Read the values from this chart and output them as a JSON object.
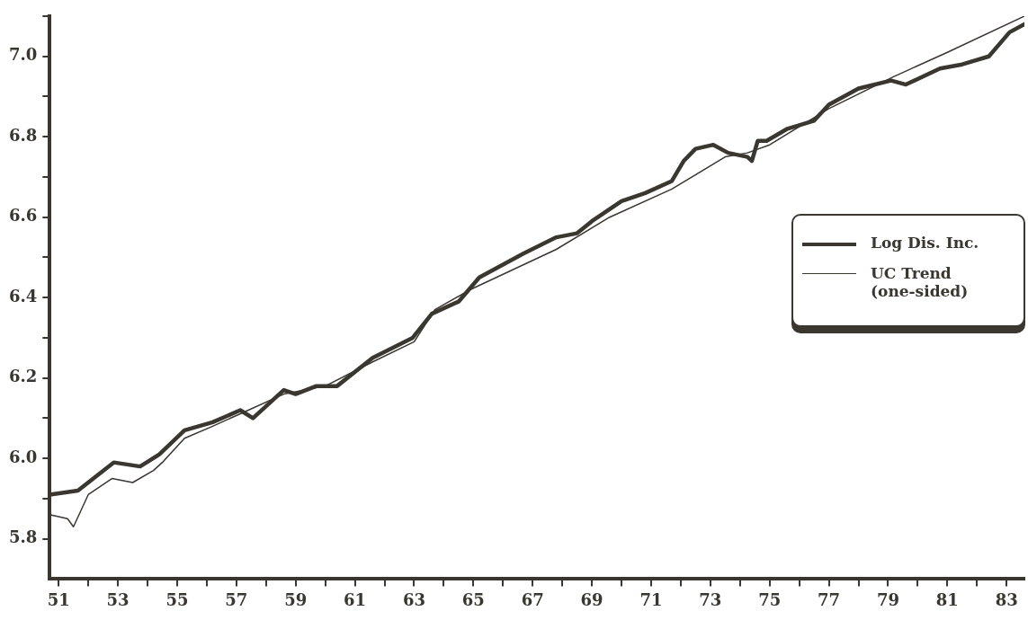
{
  "chart_data": {
    "type": "line",
    "legend": "right",
    "grid": false,
    "marker": "none",
    "line_style": "solid",
    "xlim": [
      50.7,
      83.6
    ],
    "xticks": [
      51,
      {
        "value": 52,
        "label": null
      },
      53,
      {
        "value": 54,
        "label": null
      },
      55,
      {
        "value": 56,
        "label": null
      },
      57,
      {
        "value": 58,
        "label": null
      },
      59,
      {
        "value": 60,
        "label": null
      },
      61,
      {
        "value": 62,
        "label": null
      },
      63,
      {
        "value": 64,
        "label": null
      },
      65,
      {
        "value": 66,
        "label": null
      },
      67,
      {
        "value": 68,
        "label": null
      },
      69,
      {
        "value": 70,
        "label": null
      },
      71,
      {
        "value": 72,
        "label": null
      },
      73,
      {
        "value": 74,
        "label": null
      },
      75,
      {
        "value": 76,
        "label": null
      },
      77,
      {
        "value": 78,
        "label": null
      },
      79,
      {
        "value": 80,
        "label": null
      },
      81,
      {
        "value": 82,
        "label": null
      },
      83
    ],
    "ylim": [
      5.7,
      7.1
    ],
    "yticks": [
      {
        "value": 5.8,
        "label": "5.8"
      },
      {
        "value": 5.9,
        "label": null
      },
      {
        "value": 6.0,
        "label": "6.0"
      },
      {
        "value": 6.1,
        "label": null
      },
      {
        "value": 6.2,
        "label": "6.2"
      },
      {
        "value": 6.3,
        "label": null
      },
      {
        "value": 6.4,
        "label": "6.4"
      },
      {
        "value": 6.5,
        "label": null
      },
      {
        "value": 6.6,
        "label": "6.6"
      },
      {
        "value": 6.7,
        "label": null
      },
      {
        "value": 6.8,
        "label": "6.8"
      },
      {
        "value": 6.9,
        "label": null
      },
      {
        "value": 7.0,
        "label": "7.0"
      },
      {
        "value": 7.1,
        "label": null
      }
    ],
    "series": [
      {
        "name": "Log Dis. Inc.",
        "color": "#3a3630",
        "x": [
          50.7,
          51.65,
          52.86,
          53.75,
          54.4,
          55.25,
          56.2,
          57.13,
          57.56,
          58.6,
          59.0,
          59.7,
          60.4,
          61.6,
          62.95,
          63.6,
          64.5,
          65.2,
          66.7,
          67.8,
          68.5,
          69.0,
          70.0,
          70.8,
          71.7,
          72.1,
          72.5,
          73.1,
          73.6,
          74.25,
          74.4,
          74.6,
          74.9,
          75.6,
          76.5,
          77.0,
          78.0,
          79.1,
          79.6,
          80.75,
          81.5,
          82.4,
          83.1,
          83.6
        ],
        "values": [
          5.91,
          5.92,
          5.99,
          5.98,
          6.01,
          6.07,
          6.09,
          6.12,
          6.1,
          6.17,
          6.16,
          6.18,
          6.18,
          6.25,
          6.3,
          6.36,
          6.39,
          6.45,
          6.51,
          6.55,
          6.56,
          6.59,
          6.64,
          6.66,
          6.69,
          6.74,
          6.77,
          6.78,
          6.76,
          6.75,
          6.74,
          6.79,
          6.79,
          6.82,
          6.84,
          6.88,
          6.92,
          6.94,
          6.93,
          6.97,
          6.98,
          7.0,
          7.06,
          7.08
        ]
      },
      {
        "name": "UC Trend (one-sided)",
        "color": "#3a3630",
        "x": [
          50.7,
          51.3,
          51.5,
          52.0,
          52.8,
          53.5,
          54.2,
          54.5,
          55.25,
          56.2,
          57.1,
          58.6,
          60.0,
          61.6,
          63.0,
          63.7,
          64.9,
          67.8,
          69.6,
          71.7,
          73.5,
          74.25,
          75.0,
          77.0,
          79.2,
          81.0,
          83.6
        ],
        "values": [
          5.86,
          5.85,
          5.83,
          5.91,
          5.95,
          5.94,
          5.97,
          5.99,
          6.05,
          6.08,
          6.11,
          6.16,
          6.18,
          6.24,
          6.29,
          6.37,
          6.42,
          6.52,
          6.6,
          6.67,
          6.75,
          6.76,
          6.78,
          6.87,
          6.95,
          7.01,
          7.1
        ]
      }
    ]
  }
}
